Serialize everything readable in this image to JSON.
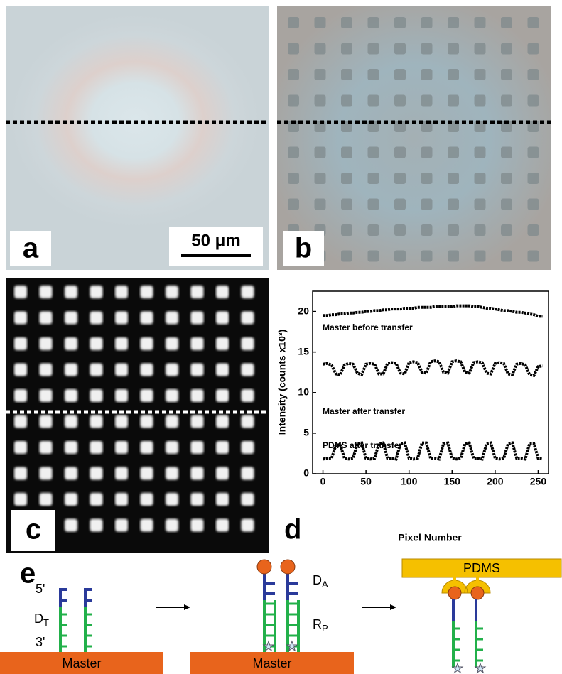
{
  "panels": [
    {
      "label": "a"
    },
    {
      "label": "b"
    },
    {
      "label": "c"
    }
  ],
  "scale_bar": "50 μm",
  "chart_data": {
    "type": "line",
    "panel_label": "d",
    "xlabel": "Pixel Number",
    "ylabel": "Intensity (counts x10³)",
    "x": [
      0,
      5,
      10,
      15,
      20,
      25,
      30,
      35,
      40,
      45,
      50,
      55,
      60,
      65,
      70,
      75,
      80,
      85,
      90,
      95,
      100,
      105,
      110,
      115,
      120,
      125,
      130,
      135,
      140,
      145,
      150,
      155,
      160,
      165,
      170,
      175,
      180,
      185,
      190,
      195,
      200,
      205,
      210,
      215,
      220,
      225,
      230,
      235,
      240,
      245,
      250,
      255
    ],
    "series": [
      {
        "name": "Master before transfer",
        "color": "#000000",
        "values": [
          19.5,
          19.5,
          19.6,
          19.6,
          19.7,
          19.7,
          19.8,
          19.8,
          19.9,
          19.9,
          20.0,
          20.0,
          20.1,
          20.1,
          20.2,
          20.2,
          20.3,
          20.3,
          20.3,
          20.4,
          20.4,
          20.4,
          20.5,
          20.5,
          20.5,
          20.5,
          20.6,
          20.6,
          20.6,
          20.6,
          20.6,
          20.7,
          20.7,
          20.7,
          20.7,
          20.6,
          20.6,
          20.5,
          20.4,
          20.4,
          20.3,
          20.2,
          20.1,
          20.1,
          20.0,
          19.9,
          19.9,
          19.8,
          19.7,
          19.6,
          19.4,
          19.4
        ]
      },
      {
        "name": "Master after transfer",
        "color": "#000000",
        "values": [
          13.5,
          13.6,
          13.4,
          12.3,
          12.2,
          13.4,
          13.6,
          13.5,
          12.4,
          12.2,
          13.5,
          13.6,
          13.5,
          12.3,
          12.3,
          13.6,
          13.7,
          13.6,
          12.4,
          12.3,
          13.7,
          13.8,
          13.7,
          12.5,
          12.4,
          13.8,
          13.9,
          13.8,
          12.5,
          12.4,
          13.8,
          13.9,
          13.8,
          12.5,
          12.4,
          13.7,
          13.8,
          13.7,
          12.4,
          12.3,
          13.6,
          13.7,
          13.6,
          12.3,
          12.2,
          13.5,
          13.6,
          13.4,
          12.2,
          12.1,
          13.2,
          13.3
        ]
      },
      {
        "name": "PDMS after transfer",
        "color": "#000000",
        "values": [
          1.8,
          1.9,
          1.9,
          3.5,
          3.6,
          1.9,
          1.8,
          1.9,
          3.7,
          3.8,
          1.9,
          1.8,
          1.9,
          3.7,
          3.8,
          1.9,
          1.9,
          1.8,
          3.7,
          3.8,
          1.9,
          1.8,
          1.9,
          3.8,
          3.8,
          1.9,
          1.9,
          1.8,
          3.7,
          3.8,
          1.9,
          1.8,
          1.9,
          3.7,
          3.8,
          1.9,
          1.9,
          1.8,
          3.7,
          3.8,
          1.9,
          1.8,
          1.9,
          3.7,
          3.8,
          1.9,
          1.9,
          1.8,
          3.7,
          3.7,
          1.9,
          1.8
        ]
      }
    ],
    "xlim": [
      -12,
      262
    ],
    "ylim": [
      0,
      22.5
    ],
    "xticks": [
      0,
      50,
      100,
      150,
      200,
      250
    ],
    "yticks": [
      0,
      5,
      10,
      15,
      20
    ]
  },
  "diagram": {
    "label": "e",
    "step1": {
      "top": "5'",
      "strand": {
        "main": "D",
        "sub": "T"
      },
      "bottom": "3'",
      "substrate": "Master"
    },
    "step2": {
      "probe": {
        "main": "D",
        "sub": "A"
      },
      "strand": {
        "main": "R",
        "sub": "P"
      },
      "substrate": "Master"
    },
    "step3": {
      "stamp": "PDMS"
    }
  }
}
